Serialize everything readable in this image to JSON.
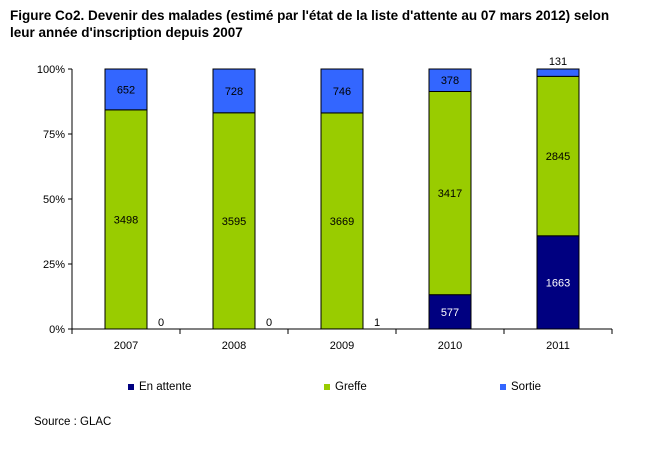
{
  "title": {
    "line1": "Figure Co2. Devenir des malades (estimé par l'état de la liste d'attente au 07 mars 2012) selon",
    "line2": "leur année d'inscription depuis 2007"
  },
  "source": "Source : GLAC",
  "colors": {
    "en_attente": "#000080",
    "greffe": "#99cc00",
    "sortie": "#3366ff"
  },
  "chart_data": {
    "type": "bar",
    "stacked": "percent",
    "categories": [
      "2007",
      "2008",
      "2009",
      "2010",
      "2011"
    ],
    "series": [
      {
        "name": "En attente",
        "values": [
          0,
          0,
          1,
          577,
          1663
        ]
      },
      {
        "name": "Greffe",
        "values": [
          3498,
          3595,
          3669,
          3417,
          2845
        ]
      },
      {
        "name": "Sortie",
        "values": [
          652,
          728,
          746,
          378,
          131
        ]
      }
    ],
    "y_ticks": [
      "0%",
      "25%",
      "50%",
      "75%",
      "100%"
    ],
    "ylim": [
      0,
      100
    ],
    "legend_position": "bottom",
    "grid": false
  }
}
